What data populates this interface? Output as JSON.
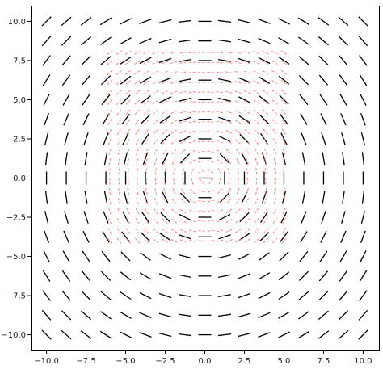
{
  "chart_data": {
    "type": "scatter",
    "description_free": true,
    "xlim": [
      -11,
      11
    ],
    "ylim": [
      -11,
      11
    ],
    "x_ticks": [
      -10.0,
      -7.5,
      -5.0,
      -2.5,
      0.0,
      2.5,
      5.0,
      7.5,
      10.0
    ],
    "y_ticks": [
      -10.0,
      -7.5,
      -5.0,
      -2.5,
      0.0,
      2.5,
      5.0,
      7.5,
      10.0
    ],
    "x_tick_labels": [
      "−10.0",
      "−7.5",
      "−5.0",
      "−2.5",
      "0.0",
      "2.5",
      "5.0",
      "7.5",
      "10.0"
    ],
    "y_tick_labels": [
      "−10.0",
      "−7.5",
      "−5.0",
      "−2.5",
      "0.0",
      "2.5",
      "5.0",
      "7.5",
      "10.0"
    ],
    "grid": false,
    "series": [
      {
        "color": "#000000",
        "style": "solid",
        "grid_range": [
          -10,
          10
        ],
        "grid_count": 17,
        "field": "direction angle = atan2(-x, y) (slope field)"
      },
      {
        "color": "#ff7f7f",
        "style": "dashed",
        "grid_range_x": [
          -6,
          5
        ],
        "grid_range_y": [
          -4,
          8
        ],
        "grid_count": 20,
        "field": "direction angle = atan2(-x, y) (slope field)"
      }
    ]
  }
}
